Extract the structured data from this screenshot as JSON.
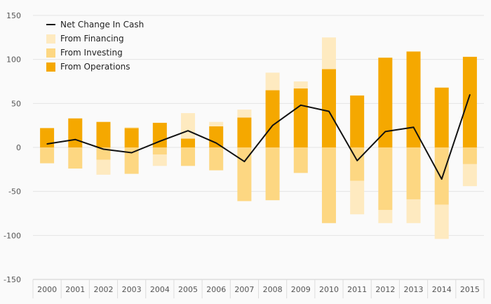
{
  "chart_data": {
    "type": "bar",
    "categories": [
      "2000",
      "2001",
      "2002",
      "2003",
      "2004",
      "2005",
      "2006",
      "2007",
      "2008",
      "2009",
      "2010",
      "2011",
      "2012",
      "2013",
      "2014",
      "2015"
    ],
    "ylim": [
      -150,
      150
    ],
    "yticks": [
      150,
      100,
      50,
      0,
      -50,
      -100,
      -150
    ],
    "grid": true,
    "legend_position": "top-left",
    "series": [
      {
        "name": "From Operations",
        "kind": "bar",
        "color": "#f5a800",
        "values": [
          22,
          33,
          29,
          22,
          28,
          10,
          24,
          34,
          65,
          67,
          89,
          59,
          102,
          109,
          68,
          103
        ]
      },
      {
        "name": "From Investing",
        "kind": "bar",
        "color": "#fdd782",
        "values": [
          -18,
          -24,
          -14,
          -30,
          -8,
          -21,
          -26,
          -61,
          -60,
          -29,
          -86,
          -38,
          -71,
          -59,
          -65,
          -19
        ]
      },
      {
        "name": "From Financing",
        "kind": "bar",
        "color": "#feeac0",
        "values": [
          0,
          0,
          -17,
          1,
          -13,
          29,
          5,
          9,
          20,
          8,
          36,
          -38,
          -15,
          -27,
          -39,
          -25
        ]
      },
      {
        "name": "Net Change In Cash",
        "kind": "line",
        "color": "#111111",
        "values": [
          4,
          9,
          -2,
          -6,
          7,
          19,
          5,
          -16,
          25,
          48,
          41,
          -15,
          18,
          23,
          -36,
          60
        ]
      }
    ]
  },
  "legend": [
    {
      "label": "Net Change In Cash",
      "kind": "line",
      "color": "#111111"
    },
    {
      "label": "From Financing",
      "kind": "box",
      "color": "#feeac0"
    },
    {
      "label": "From Investing",
      "kind": "box",
      "color": "#fdd782"
    },
    {
      "label": "From Operations",
      "kind": "box",
      "color": "#f5a800"
    }
  ]
}
